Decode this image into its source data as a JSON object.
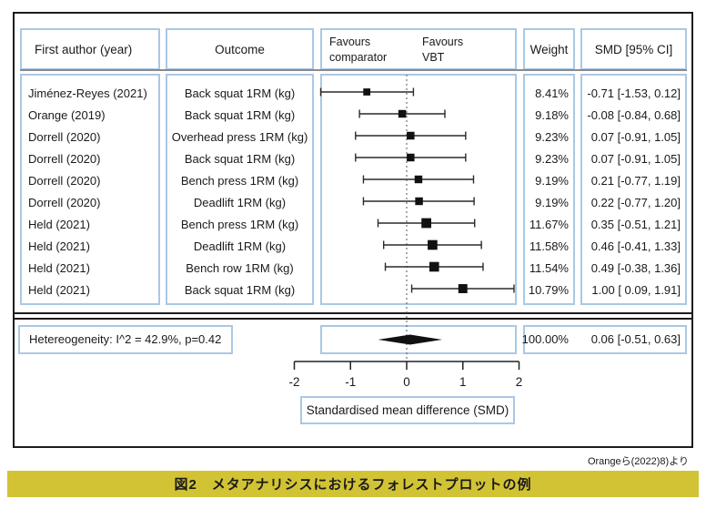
{
  "colors": {
    "box_border": "#aac8e4",
    "caption_bg": "#d2c335",
    "ink": "#1a1a1a",
    "grey_line": "#8a8a8a"
  },
  "header": {
    "author": "First author (year)",
    "outcome": "Outcome",
    "favours_left_line1": "Favours",
    "favours_left_line2": "comparator",
    "favours_right_line1": "Favours",
    "favours_right_line2": "VBT",
    "weight": "Weight",
    "smd": "SMD [95% CI]"
  },
  "summary": {
    "heterogeneity": "Hetereogeneity: I^2 = 42.9%, p=0.42",
    "weight_text": "100.00%",
    "smd_text": "0.06 [-0.51, 0.63]"
  },
  "axis_label": "Standardised mean difference (SMD)",
  "credit": "Orangeら(2022)8)より",
  "caption": "図2　メタアナリシスにおけるフォレストプロットの例",
  "chart_data": {
    "type": "scatter",
    "subtype": "forest-plot",
    "title": "図2 メタアナリシスにおけるフォレストプロットの例",
    "xlabel": "Standardised mean difference (SMD)",
    "xlim": [
      -2,
      2
    ],
    "x_ticks": [
      -2,
      -1,
      0,
      1,
      2
    ],
    "zero_line": 0,
    "favours": {
      "left": "Favours comparator",
      "right": "Favours VBT"
    },
    "columns": [
      "First author (year)",
      "Outcome",
      "Weight",
      "SMD [95% CI]"
    ],
    "studies": [
      {
        "author": "Jiménez-Reyes (2021)",
        "outcome": "Back squat 1RM (kg)",
        "weight_pct": 8.41,
        "weight_text": "8.41%",
        "smd": -0.71,
        "ci95": [
          -1.53,
          0.12
        ],
        "smd_text": "-0.71 [-1.53, 0.12]"
      },
      {
        "author": "Orange (2019)",
        "outcome": "Back squat 1RM (kg)",
        "weight_pct": 9.18,
        "weight_text": "9.18%",
        "smd": -0.08,
        "ci95": [
          -0.84,
          0.68
        ],
        "smd_text": "-0.08 [-0.84, 0.68]"
      },
      {
        "author": "Dorrell (2020)",
        "outcome": "Overhead press 1RM (kg)",
        "weight_pct": 9.23,
        "weight_text": "9.23%",
        "smd": 0.07,
        "ci95": [
          -0.91,
          1.05
        ],
        "smd_text": "0.07 [-0.91, 1.05]"
      },
      {
        "author": "Dorrell (2020)",
        "outcome": "Back squat 1RM (kg)",
        "weight_pct": 9.23,
        "weight_text": "9.23%",
        "smd": 0.07,
        "ci95": [
          -0.91,
          1.05
        ],
        "smd_text": "0.07 [-0.91, 1.05]"
      },
      {
        "author": "Dorrell (2020)",
        "outcome": "Bench press 1RM (kg)",
        "weight_pct": 9.19,
        "weight_text": "9.19%",
        "smd": 0.21,
        "ci95": [
          -0.77,
          1.19
        ],
        "smd_text": "0.21 [-0.77, 1.19]"
      },
      {
        "author": "Dorrell (2020)",
        "outcome": "Deadlift 1RM (kg)",
        "weight_pct": 9.19,
        "weight_text": "9.19%",
        "smd": 0.22,
        "ci95": [
          -0.77,
          1.2
        ],
        "smd_text": "0.22 [-0.77, 1.20]"
      },
      {
        "author": "Held (2021)",
        "outcome": "Bench press 1RM (kg)",
        "weight_pct": 11.67,
        "weight_text": "11.67%",
        "smd": 0.35,
        "ci95": [
          -0.51,
          1.21
        ],
        "smd_text": "0.35 [-0.51, 1.21]"
      },
      {
        "author": "Held (2021)",
        "outcome": "Deadlift 1RM (kg)",
        "weight_pct": 11.58,
        "weight_text": "11.58%",
        "smd": 0.46,
        "ci95": [
          -0.41,
          1.33
        ],
        "smd_text": "0.46 [-0.41, 1.33]"
      },
      {
        "author": "Held (2021)",
        "outcome": "Bench row 1RM (kg)",
        "weight_pct": 11.54,
        "weight_text": "11.54%",
        "smd": 0.49,
        "ci95": [
          -0.38,
          1.36
        ],
        "smd_text": "0.49 [-0.38, 1.36]"
      },
      {
        "author": "Held (2021)",
        "outcome": "Back squat 1RM (kg)",
        "weight_pct": 10.79,
        "weight_text": "10.79%",
        "smd": 1.0,
        "ci95": [
          0.09,
          1.91
        ],
        "smd_text": "1.00 [ 0.09, 1.91]"
      }
    ],
    "pooled": {
      "weight_pct": 100.0,
      "smd": 0.06,
      "ci95": [
        -0.51,
        0.63
      ],
      "heterogeneity": "I^2 = 42.9%, p=0.42"
    }
  }
}
